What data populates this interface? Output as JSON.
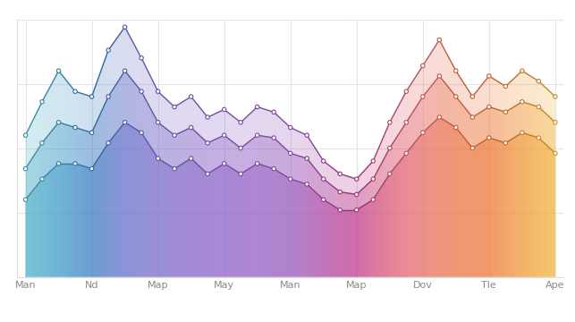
{
  "chart_data": {
    "type": "area",
    "categories": [
      "Man",
      null,
      null,
      null,
      "Nd",
      null,
      null,
      null,
      "Map",
      null,
      null,
      null,
      "May",
      null,
      null,
      null,
      "Man",
      null,
      null,
      null,
      "Map",
      null,
      null,
      null,
      "Dov",
      null,
      null,
      null,
      "Tle",
      null,
      null,
      null,
      "Ape"
    ],
    "colors": [
      "#4fb3c8",
      "#48a8c9",
      "#429dca",
      "#3f8fc8",
      "#3d7fc4",
      "#5578c8",
      "#6872ca",
      "#726fca",
      "#7b6cc9",
      "#8068c8",
      "#8566c8",
      "#8a64c8",
      "#8f63c8",
      "#9261c6",
      "#955fc4",
      "#975dc2",
      "#9a5cc0",
      "#a553b3",
      "#b04aa6",
      "#b8449a",
      "#c03f8f",
      "#cf4d85",
      "#dc5a7a",
      "#e46672",
      "#e8706a",
      "#ea7358",
      "#ec764a",
      "#ed7841",
      "#ee7a3a",
      "#ef8a3a",
      "#f09a3b",
      "#f1a83b",
      "#f2b43c"
    ],
    "series": [
      {
        "values": [
          55,
          68,
          80,
          72,
          70,
          88,
          97,
          85,
          72,
          66,
          70,
          62,
          65,
          60,
          66,
          64,
          58,
          55,
          45,
          40,
          38,
          45,
          60,
          72,
          82,
          92,
          80,
          70,
          78,
          74,
          80,
          76,
          70
        ],
        "marker": "o",
        "line_style": "solid"
      },
      {
        "values": [
          42,
          52,
          60,
          58,
          56,
          70,
          80,
          72,
          60,
          55,
          58,
          52,
          55,
          50,
          55,
          54,
          48,
          46,
          38,
          33,
          32,
          38,
          50,
          60,
          70,
          78,
          70,
          62,
          66,
          64,
          68,
          66,
          60
        ],
        "marker": "o",
        "line_style": "solid"
      },
      {
        "values": [
          30,
          38,
          44,
          44,
          42,
          52,
          60,
          56,
          46,
          42,
          46,
          40,
          44,
          40,
          44,
          42,
          38,
          36,
          30,
          26,
          26,
          30,
          40,
          48,
          56,
          62,
          58,
          50,
          54,
          52,
          56,
          54,
          48
        ],
        "marker": "o",
        "line_style": "solid"
      }
    ],
    "ylim": [
      0,
      100
    ],
    "yticks": [
      0,
      25,
      50,
      75,
      100
    ],
    "grid": true,
    "tick_labels": "x"
  }
}
